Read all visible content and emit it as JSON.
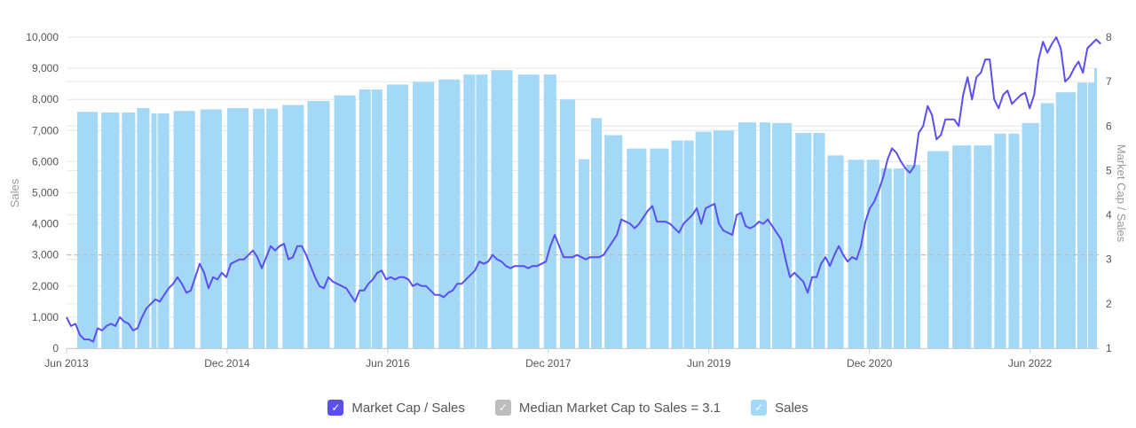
{
  "chart_data": {
    "type": "bar+line",
    "x_axis": {
      "ticks": [
        "Jun 2013",
        "Dec 2014",
        "Jun 2016",
        "Dec 2017",
        "Jun 2019",
        "Dec 2020",
        "Jun 2022"
      ],
      "tick_months": [
        0,
        18,
        36,
        54,
        72,
        90,
        108
      ],
      "range_months": [
        0,
        115.7
      ],
      "unit": "months since Jun 2013"
    },
    "y_left": {
      "label": "Sales",
      "range": [
        0,
        10000
      ],
      "ticks": [
        "0",
        "1,000",
        "2,000",
        "3,000",
        "4,000",
        "5,000",
        "6,000",
        "7,000",
        "8,000",
        "9,000",
        "10,000"
      ]
    },
    "y_right": {
      "label": "Market Cap / Sales",
      "range": [
        1,
        8
      ],
      "ticks": [
        "1",
        "2",
        "3",
        "4",
        "5",
        "6",
        "7",
        "8"
      ]
    },
    "median": {
      "label": "Median Market Cap to Sales = 3.1",
      "value": 3.1
    },
    "sales_bars": [
      [
        1.2,
        3.5,
        7600
      ],
      [
        3.9,
        5.9,
        7580
      ],
      [
        6.2,
        7.7,
        7580
      ],
      [
        7.9,
        9.3,
        7720
      ],
      [
        9.5,
        10.1,
        7550
      ],
      [
        10.2,
        11.5,
        7550
      ],
      [
        12.0,
        14.4,
        7630
      ],
      [
        15.0,
        17.4,
        7680
      ],
      [
        18.0,
        20.4,
        7720
      ],
      [
        20.9,
        22.2,
        7700
      ],
      [
        22.4,
        23.7,
        7700
      ],
      [
        24.2,
        26.6,
        7820
      ],
      [
        27.0,
        29.5,
        7950
      ],
      [
        30.0,
        32.4,
        8130
      ],
      [
        32.8,
        34.1,
        8320
      ],
      [
        34.2,
        35.4,
        8320
      ],
      [
        35.9,
        38.3,
        8480
      ],
      [
        38.8,
        41.2,
        8560
      ],
      [
        41.7,
        44.1,
        8640
      ],
      [
        44.5,
        45.8,
        8800
      ],
      [
        45.9,
        47.2,
        8800
      ],
      [
        47.6,
        50.0,
        8940
      ],
      [
        50.6,
        53.0,
        8800
      ],
      [
        53.5,
        54.9,
        8800
      ],
      [
        55.3,
        57.0,
        8000
      ],
      [
        57.4,
        58.6,
        6080
      ],
      [
        58.8,
        60.0,
        7400
      ],
      [
        60.3,
        62.3,
        6850
      ],
      [
        62.8,
        65.0,
        6420
      ],
      [
        65.4,
        67.5,
        6420
      ],
      [
        67.8,
        69.1,
        6680
      ],
      [
        69.2,
        70.3,
        6680
      ],
      [
        70.5,
        72.3,
        6960
      ],
      [
        72.5,
        74.8,
        7000
      ],
      [
        75.3,
        77.3,
        7260
      ],
      [
        77.7,
        78.9,
        7260
      ],
      [
        79.1,
        81.3,
        7240
      ],
      [
        81.7,
        83.5,
        6920
      ],
      [
        83.7,
        85.0,
        6920
      ],
      [
        85.3,
        87.1,
        6200
      ],
      [
        87.6,
        89.4,
        6060
      ],
      [
        89.7,
        91.1,
        6060
      ],
      [
        91.3,
        92.5,
        5780
      ],
      [
        92.7,
        93.9,
        5780
      ],
      [
        94.1,
        95.7,
        5900
      ],
      [
        96.5,
        98.9,
        6340
      ],
      [
        99.3,
        101.4,
        6520
      ],
      [
        101.7,
        103.7,
        6520
      ],
      [
        104.0,
        105.3,
        6900
      ],
      [
        105.6,
        106.8,
        6900
      ],
      [
        107.1,
        109.0,
        7240
      ],
      [
        109.2,
        110.7,
        7880
      ],
      [
        110.9,
        113.1,
        8230
      ],
      [
        113.3,
        114.4,
        8540
      ],
      [
        114.5,
        115.2,
        8540
      ],
      [
        115.2,
        115.5,
        9000
      ]
    ],
    "ratio_line": {
      "step_months": 0.4975,
      "values": [
        1.7,
        1.5,
        1.55,
        1.3,
        1.2,
        1.2,
        1.15,
        1.45,
        1.4,
        1.5,
        1.55,
        1.5,
        1.7,
        1.6,
        1.55,
        1.4,
        1.45,
        1.7,
        1.9,
        2.0,
        2.1,
        2.05,
        2.2,
        2.35,
        2.45,
        2.6,
        2.45,
        2.25,
        2.3,
        2.6,
        2.9,
        2.7,
        2.35,
        2.6,
        2.55,
        2.7,
        2.6,
        2.9,
        2.95,
        3.0,
        3.0,
        3.1,
        3.2,
        3.05,
        2.8,
        3.05,
        3.3,
        3.2,
        3.3,
        3.35,
        3.0,
        3.05,
        3.3,
        3.3,
        3.1,
        2.85,
        2.6,
        2.4,
        2.35,
        2.6,
        2.5,
        2.45,
        2.4,
        2.35,
        2.2,
        2.05,
        2.3,
        2.3,
        2.45,
        2.55,
        2.7,
        2.75,
        2.55,
        2.6,
        2.55,
        2.6,
        2.6,
        2.55,
        2.4,
        2.45,
        2.4,
        2.4,
        2.3,
        2.2,
        2.2,
        2.15,
        2.25,
        2.3,
        2.45,
        2.45,
        2.55,
        2.65,
        2.75,
        2.95,
        2.9,
        2.95,
        3.1,
        3.0,
        2.95,
        2.85,
        2.8,
        2.85,
        2.85,
        2.85,
        2.8,
        2.85,
        2.85,
        2.9,
        2.95,
        3.3,
        3.55,
        3.3,
        3.05,
        3.05,
        3.05,
        3.1,
        3.05,
        3.0,
        3.05,
        3.05,
        3.05,
        3.1,
        3.25,
        3.4,
        3.55,
        3.9,
        3.85,
        3.8,
        3.7,
        3.8,
        3.95,
        4.1,
        4.2,
        3.85,
        3.85,
        3.85,
        3.8,
        3.7,
        3.6,
        3.8,
        3.9,
        4.0,
        4.15,
        3.8,
        4.15,
        4.2,
        4.25,
        3.8,
        3.65,
        3.6,
        3.55,
        4.0,
        4.05,
        3.75,
        3.7,
        3.75,
        3.85,
        3.8,
        3.9,
        3.75,
        3.6,
        3.45,
        3.0,
        2.6,
        2.7,
        2.6,
        2.5,
        2.25,
        2.6,
        2.6,
        2.9,
        3.05,
        2.85,
        3.1,
        3.3,
        3.1,
        2.95,
        3.05,
        3.0,
        3.3,
        3.85,
        4.15,
        4.3,
        4.55,
        4.85,
        5.25,
        5.5,
        5.4,
        5.2,
        5.05,
        4.95,
        5.1,
        5.85,
        6.0,
        6.45,
        6.25,
        5.7,
        5.8,
        6.15,
        6.15,
        6.15,
        6.0,
        6.7,
        7.1,
        6.6,
        7.1,
        7.2,
        7.5,
        7.5,
        6.6,
        6.4,
        6.7,
        6.8,
        6.5,
        6.6,
        6.7,
        6.75,
        6.4,
        6.7,
        7.5,
        7.9,
        7.65,
        7.85,
        8.0,
        7.75,
        7.0,
        7.1,
        7.3,
        7.45,
        7.2,
        7.75,
        7.85,
        7.95,
        7.85
      ]
    },
    "legend": [
      {
        "label": "Market Cap / Sales",
        "color": "#5b4ff0"
      },
      {
        "label": "Median Market Cap to Sales = 3.1",
        "color": "#bdbdbd"
      },
      {
        "label": "Sales",
        "color": "#a3d9f7"
      }
    ],
    "colors": {
      "bar": "#a3d9f7",
      "line": "#5b4ff0",
      "median": "#c8b8a8",
      "grid": "#e6e6e6"
    }
  },
  "legend_check": "✓"
}
